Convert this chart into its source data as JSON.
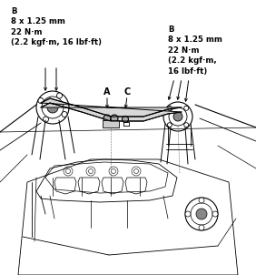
{
  "figsize": [
    2.82,
    3.02
  ],
  "dpi": 100,
  "bg_color": "#ffffff",
  "left_label": "B\n8 x 1.25 mm\n22 N·m\n(2.2 kgf·m, 16 lbf·ft)",
  "right_label": "B\n8 x 1.25 mm\n22 N·m\n(2.2 kgf·m,\n16 lbf·ft)",
  "label_A": "A",
  "label_C": "C",
  "text_color": "#000000",
  "line_color": "#000000",
  "font_size_label": 6.2,
  "font_size_ABC": 7.0
}
